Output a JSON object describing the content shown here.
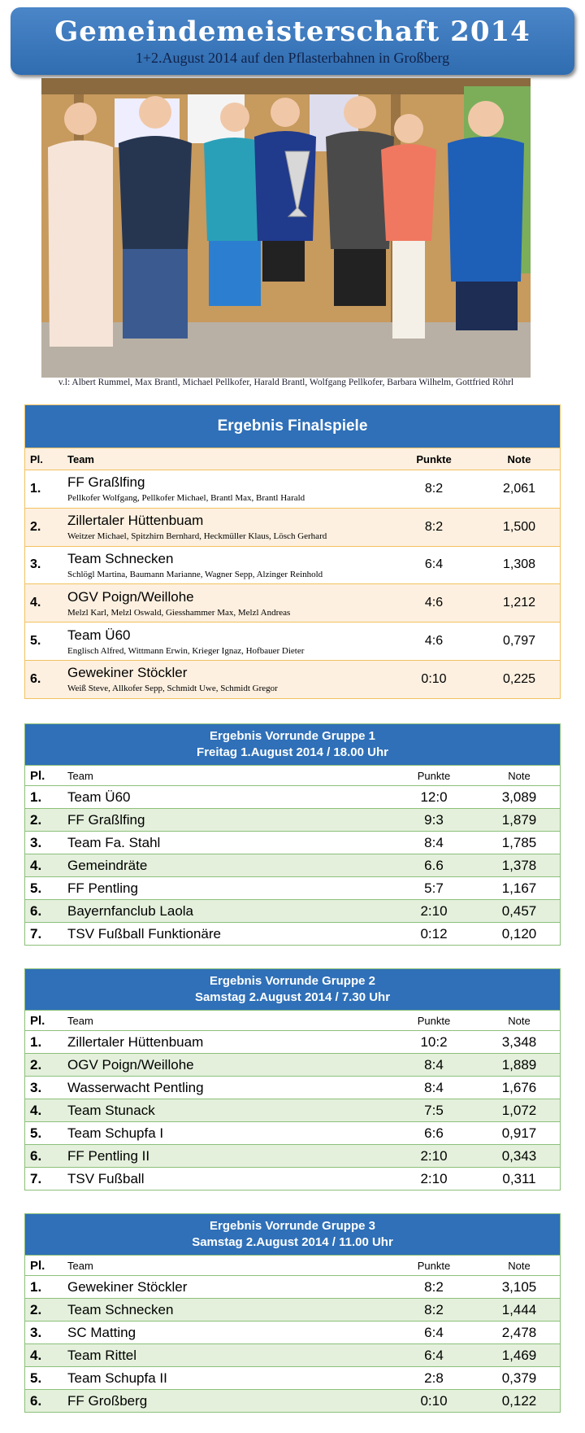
{
  "header": {
    "title": "Gemeindemeisterschaft 2014",
    "subtitle": "1+2.August 2014 auf den Pflasterbahnen in Großberg"
  },
  "photo": {
    "caption": "v.l:  Albert Rummel,  Max Brantl,  Michael Pellkofer,  Harald Brantl,  Wolfgang  Pellkofer,  Barbara Wilhelm,  Gottfried Röhrl"
  },
  "final": {
    "title": "Ergebnis Finalspiele",
    "columns": [
      "Pl.",
      "Team",
      "Punkte",
      "Note"
    ],
    "rows": [
      {
        "place": "1.",
        "team": "FF Graßlfing",
        "members": "Pellkofer Wolfgang, Pellkofer Michael, Brantl Max, Brantl Harald",
        "points": "8:2",
        "note": "2,061"
      },
      {
        "place": "2.",
        "team": "Zillertaler Hüttenbuam",
        "members": "Weitzer Michael, Spitzhirn Bernhard, Heckmüller Klaus, Lösch Gerhard",
        "points": "8:2",
        "note": "1,500"
      },
      {
        "place": "3.",
        "team": "Team Schnecken",
        "members": "Schlögl Martina, Baumann Marianne, Wagner Sepp, Alzinger Reinhold",
        "points": "6:4",
        "note": "1,308"
      },
      {
        "place": "4.",
        "team": "OGV Poign/Weillohe",
        "members": "Melzl Karl, Melzl Oswald, Giesshammer Max, Melzl Andreas",
        "points": "4:6",
        "note": "1,212"
      },
      {
        "place": "5.",
        "team": "Team Ü60",
        "members": "Englisch Alfred, Wittmann Erwin,  Krieger Ignaz, Hofbauer Dieter",
        "points": "4:6",
        "note": "0,797"
      },
      {
        "place": "6.",
        "team": "Gewekiner Stöckler",
        "members": "Weiß Steve, Allkofer Sepp, Schmidt Uwe, Schmidt Gregor",
        "points": "0:10",
        "note": "0,225"
      }
    ]
  },
  "groups": [
    {
      "title": "Ergebnis Vorrunde Gruppe 1",
      "subtitle": "Freitag 1.August 2014 / 18.00 Uhr",
      "columns": [
        "Pl.",
        "Team",
        "Punkte",
        "Note"
      ],
      "rows": [
        {
          "place": "1.",
          "team": "Team Ü60",
          "points": "12:0",
          "note": "3,089"
        },
        {
          "place": "2.",
          "team": "FF Graßlfing",
          "points": "9:3",
          "note": "1,879"
        },
        {
          "place": "3.",
          "team": "Team Fa. Stahl",
          "points": "8:4",
          "note": "1,785"
        },
        {
          "place": "4.",
          "team": "Gemeindräte",
          "points": "6.6",
          "note": "1,378"
        },
        {
          "place": "5.",
          "team": "FF Pentling",
          "points": "5:7",
          "note": "1,167"
        },
        {
          "place": "6.",
          "team": "Bayernfanclub Laola",
          "points": "2:10",
          "note": "0,457"
        },
        {
          "place": "7.",
          "team": "TSV Fußball Funktionäre",
          "points": "0:12",
          "note": "0,120"
        }
      ]
    },
    {
      "title": "Ergebnis Vorrunde Gruppe 2",
      "subtitle": "Samstag 2.August 2014 / 7.30 Uhr",
      "columns": [
        "Pl.",
        "Team",
        "Punkte",
        "Note"
      ],
      "rows": [
        {
          "place": "1.",
          "team": "Zillertaler Hüttenbuam",
          "points": "10:2",
          "note": "3,348"
        },
        {
          "place": "2.",
          "team": "OGV Poign/Weillohe",
          "points": "8:4",
          "note": "1,889"
        },
        {
          "place": "3.",
          "team": "Wasserwacht Pentling",
          "points": "8:4",
          "note": "1,676"
        },
        {
          "place": "4.",
          "team": "Team Stunack",
          "points": "7:5",
          "note": "1,072"
        },
        {
          "place": "5.",
          "team": "Team Schupfa I",
          "points": "6:6",
          "note": "0,917"
        },
        {
          "place": "6.",
          "team": "FF Pentling II",
          "points": "2:10",
          "note": "0,343"
        },
        {
          "place": "7.",
          "team": "TSV Fußball",
          "points": "2:10",
          "note": "0,311"
        }
      ]
    },
    {
      "title": "Ergebnis Vorrunde Gruppe 3",
      "subtitle": "Samstag 2.August 2014 / 11.00 Uhr",
      "columns": [
        "Pl.",
        "Team",
        "Punkte",
        "Note"
      ],
      "rows": [
        {
          "place": "1.",
          "team": "Gewekiner Stöckler",
          "points": "8:2",
          "note": "3,105"
        },
        {
          "place": "2.",
          "team": "Team Schnecken",
          "points": "8:2",
          "note": "1,444"
        },
        {
          "place": "3.",
          "team": "SC Matting",
          "points": "6:4",
          "note": "2,478"
        },
        {
          "place": "4.",
          "team": "Team Rittel",
          "points": "6:4",
          "note": "1,469"
        },
        {
          "place": "5.",
          "team": "Team Schupfa II",
          "points": "2:8",
          "note": "0,379"
        },
        {
          "place": "6.",
          "team": "FF Großberg",
          "points": "0:10",
          "note": "0,122"
        }
      ]
    }
  ]
}
